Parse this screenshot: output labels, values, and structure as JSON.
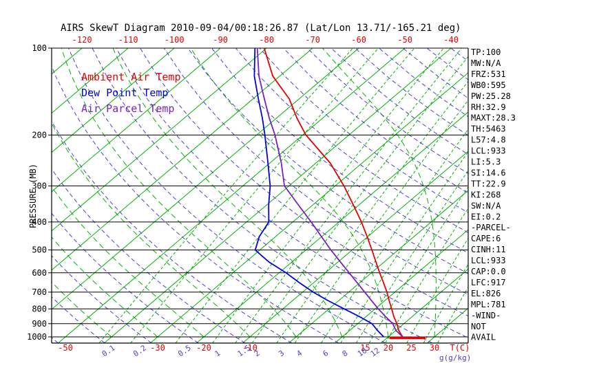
{
  "title": "AIRS SkewT Diagram 2010-09-04/00:18:26.87 (Lat/Lon 13.71/-165.21 deg)",
  "axes": {
    "y_axis_label": "PRESSURE (MB)",
    "pressure_ticks_mb": [
      100,
      200,
      300,
      400,
      500,
      600,
      700,
      800,
      900,
      1000
    ],
    "top_temp_ticks_c": [
      -120,
      -110,
      -100,
      -90,
      -80,
      -70,
      -60,
      -50,
      -40
    ],
    "bottom_temp_ticks_c": [
      -50,
      -30,
      -20,
      -10,
      15,
      20,
      25,
      30
    ],
    "bottom_temp_unit": "T(C)",
    "mixing_ratio_ticks_gkg": [
      0.1,
      0.2,
      0.5,
      1,
      1.5,
      2,
      3,
      4,
      6,
      8,
      10,
      12
    ],
    "mixing_ratio_unit": "g(g/kg)"
  },
  "legend": [
    {
      "label": "Ambient Air Temp",
      "color": "#e60000"
    },
    {
      "label": "Dew Point Temp",
      "color": "#0000e0"
    },
    {
      "label": "Air Parcel Temp",
      "color": "#7a1fc0"
    }
  ],
  "stats": [
    "TP:100",
    "MW:N/A",
    "FRZ:531",
    "WB0:595",
    "PW:25.28",
    "RH:32.9",
    "MAXT:28.3",
    "TH:5463",
    "L57:4.8",
    "LCL:933",
    "LI:5.3",
    "SI:14.6",
    "TT:22.9",
    "KI:268",
    "SW:N/A",
    "EI:0.2",
    "-PARCEL-",
    "CAPE:6",
    "CINH:11",
    "LCL:933",
    "CAP:0.0",
    "LFC:917",
    "EL:826",
    "MPL:781",
    "-WIND-",
    "NOT",
    "AVAIL"
  ],
  "colors": {
    "line_green": "#00b400",
    "adiabat_purple": "#5040c8",
    "temp_red": "#e60000",
    "axis_black": "#000000"
  },
  "chart_data": {
    "type": "line",
    "title": "AIRS SkewT Diagram 2010-09-04/00:18:26.87 (Lat/Lon 13.71/-165.21 deg)",
    "x_axis": "Temperature (C), skewed +45 deg",
    "y_axis": "Pressure (MB), log scale",
    "ylim": [
      1050,
      100
    ],
    "xlim_bottom_c": [
      -53,
      37
    ],
    "pressure_levels_mb": [
      1000,
      950,
      900,
      850,
      800,
      750,
      700,
      650,
      600,
      550,
      500,
      450,
      400,
      350,
      300,
      250,
      200,
      175,
      150,
      125,
      100
    ],
    "series": [
      {
        "key": "ambient-temp",
        "name": "Ambient Air Temp",
        "color": "#e60000",
        "temps_c": [
          23.1,
          20.6,
          18.5,
          16.0,
          13.6,
          11.0,
          8.3,
          5.2,
          1.8,
          -1.8,
          -5.7,
          -10.1,
          -15.1,
          -21.1,
          -28.1,
          -36.9,
          -49.3,
          -55.5,
          -62.1,
          -71.5,
          -80.5
        ]
      },
      {
        "key": "dew-point",
        "name": "Dew Point Temp",
        "color": "#0000e0",
        "temps_c": [
          19.0,
          16.0,
          13.1,
          8.5,
          3.3,
          -2.2,
          -7.7,
          -13.0,
          -18.5,
          -25.0,
          -31.0,
          -33.5,
          -35.2,
          -39.5,
          -44.1,
          -50.4,
          -58.2,
          -63.0,
          -68.8,
          -75.5,
          -82.5
        ]
      },
      {
        "key": "air-parcel",
        "name": "Air Parcel Temp",
        "color": "#7a1fc0",
        "temps_c": [
          23.1,
          20.0,
          17.6,
          14.2,
          10.7,
          7.2,
          3.5,
          -0.5,
          -4.8,
          -9.5,
          -14.6,
          -20.0,
          -26.0,
          -33.0,
          -41.0,
          -47.5,
          -56.0,
          -61.5,
          -67.5,
          -74.5,
          -82.0
        ]
      }
    ],
    "max_temp_marker": {
      "pressure_mb": 1008,
      "t_start_c": 20.5,
      "t_end_c": 28.3
    },
    "background": {
      "isotherms_c": [
        -160,
        -150,
        -140,
        -130,
        -120,
        -110,
        -100,
        -90,
        -80,
        -70,
        -60,
        -50,
        -40,
        -30,
        -20,
        -10,
        0,
        10,
        20,
        30,
        40
      ],
      "dry_adiabats_k": [
        220,
        230,
        240,
        250,
        260,
        270,
        280,
        290,
        300,
        310,
        320,
        330,
        340,
        350,
        360,
        370,
        380,
        390,
        400,
        410,
        420,
        430,
        440,
        450,
        460
      ],
      "moist_adiabats_c": [
        -40,
        -30,
        -20,
        -10,
        0,
        10,
        20,
        30
      ],
      "mixing_ratio_gkg": [
        0.1,
        0.2,
        0.5,
        1,
        1.5,
        2,
        3,
        4,
        6,
        8,
        10,
        12,
        15,
        20,
        25,
        30
      ]
    }
  }
}
